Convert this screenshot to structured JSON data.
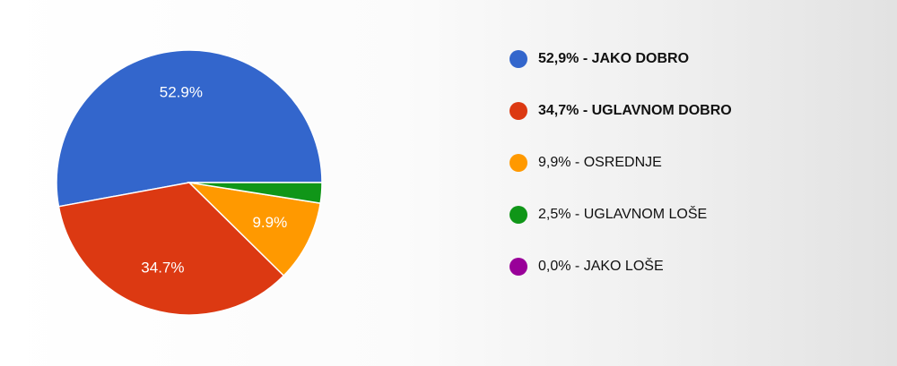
{
  "chart_data": {
    "type": "pie",
    "slices": [
      {
        "label": "JAKO DOBRO",
        "value": 52.9,
        "slice_label": "52.9%",
        "legend_text": "52,9% - JAKO DOBRO",
        "color": "#3366cc",
        "bold": true
      },
      {
        "label": "UGLAVNOM DOBRO",
        "value": 34.7,
        "slice_label": "34.7%",
        "legend_text": "34,7% - UGLAVNOM DOBRO",
        "color": "#dc3912",
        "bold": true
      },
      {
        "label": "OSREDNJE",
        "value": 9.9,
        "slice_label": "9.9%",
        "legend_text": "9,9% - OSREDNJE",
        "color": "#ff9900",
        "bold": false
      },
      {
        "label": "UGLAVNOM LOŠE",
        "value": 2.5,
        "slice_label": "",
        "legend_text": "2,5% - UGLAVNOM LOŠE",
        "color": "#109618",
        "bold": false
      },
      {
        "label": "JAKO LOŠE",
        "value": 0.0,
        "slice_label": "",
        "legend_text": "0,0% - JAKO LOŠE",
        "color": "#990099",
        "bold": false
      }
    ],
    "legend_position": "right",
    "start": "3 o'clock, counter-clockwise"
  }
}
